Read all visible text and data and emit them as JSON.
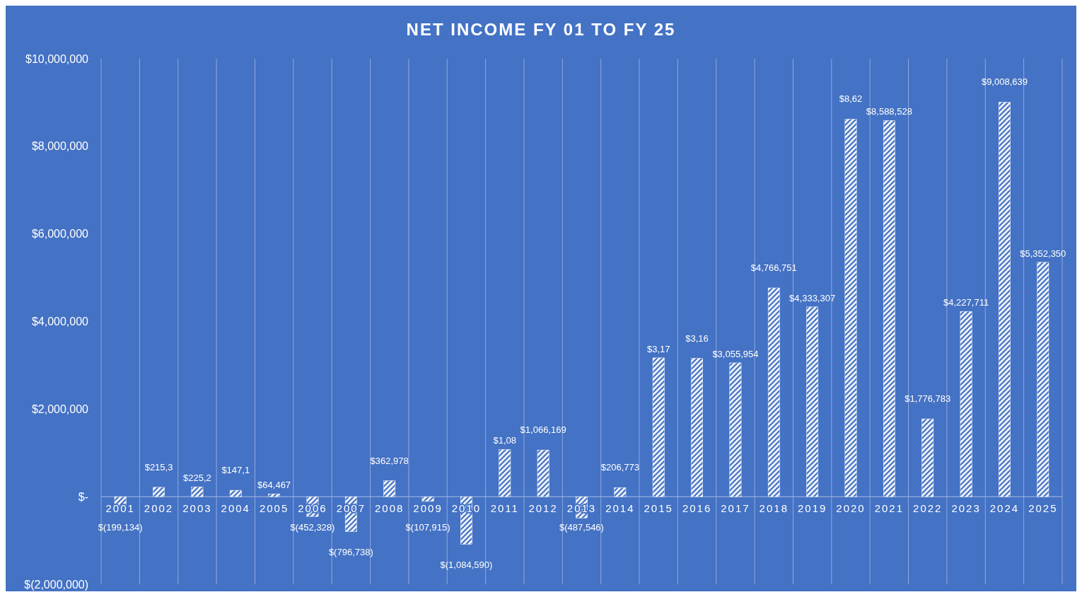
{
  "chart_data": {
    "type": "bar",
    "title": "NET INCOME FY 01 TO FY 25",
    "categories": [
      "2001",
      "2002",
      "2003",
      "2004",
      "2005",
      "2006",
      "2007",
      "2008",
      "2009",
      "2010",
      "2011",
      "2012",
      "2013",
      "2014",
      "2015",
      "2016",
      "2017",
      "2018",
      "2019",
      "2020",
      "2021",
      "2022",
      "2023",
      "2024",
      "2025"
    ],
    "values": [
      -199134,
      215000,
      225000,
      147000,
      64467,
      -452328,
      -796738,
      362978,
      -107915,
      -1084590,
      1080000,
      1066169,
      -487546,
      206773,
      3170000,
      3160000,
      3055954,
      4766751,
      4333307,
      8620000,
      8588528,
      1776783,
      4227711,
      9008639,
      5352350
    ],
    "value_labels": [
      "$(199,134)",
      null,
      null,
      null,
      "$64,467",
      "$(452,328)",
      "$(796,738)",
      "$362,978",
      "$(107,915)",
      "$(1,084,590)",
      null,
      "$1,066,169",
      "$(487,546)",
      "$206,773",
      null,
      null,
      "$3,055,954",
      "$4,766,751",
      "$4,333,307",
      null,
      "$8,588,528",
      "$1,776,783",
      "$4,227,711",
      "$9,008,639",
      "$5,352,350"
    ],
    "annotations": [
      {
        "text": "$215,3",
        "x": "2002",
        "y": 215000
      },
      {
        "text": "$225,2",
        "x": "2003",
        "y": 225000
      },
      {
        "text": "$147,1",
        "x": "2004",
        "y": 147000
      },
      {
        "text": "$1,08",
        "x": "2011",
        "y": 1080000
      },
      {
        "text": "$3,17",
        "x": "2015",
        "y": 3170000
      },
      {
        "text": "$3,16",
        "x": "2016",
        "y": 3160000
      },
      {
        "text": "$8,62",
        "x": "2020",
        "y": 8620000
      }
    ],
    "color": "#ffffff",
    "ylim": [
      -2000000,
      10000000
    ],
    "yticks": [
      {
        "value": -2000000,
        "label": "$(2,000,000)"
      },
      {
        "value": 0,
        "label": "$-"
      },
      {
        "value": 2000000,
        "label": "$2,000,000"
      },
      {
        "value": 4000000,
        "label": "$4,000,000"
      },
      {
        "value": 6000000,
        "label": "$6,000,000"
      },
      {
        "value": 8000000,
        "label": "$8,000,000"
      },
      {
        "value": 10000000,
        "label": "$10,000,000"
      }
    ],
    "grid": "x"
  }
}
